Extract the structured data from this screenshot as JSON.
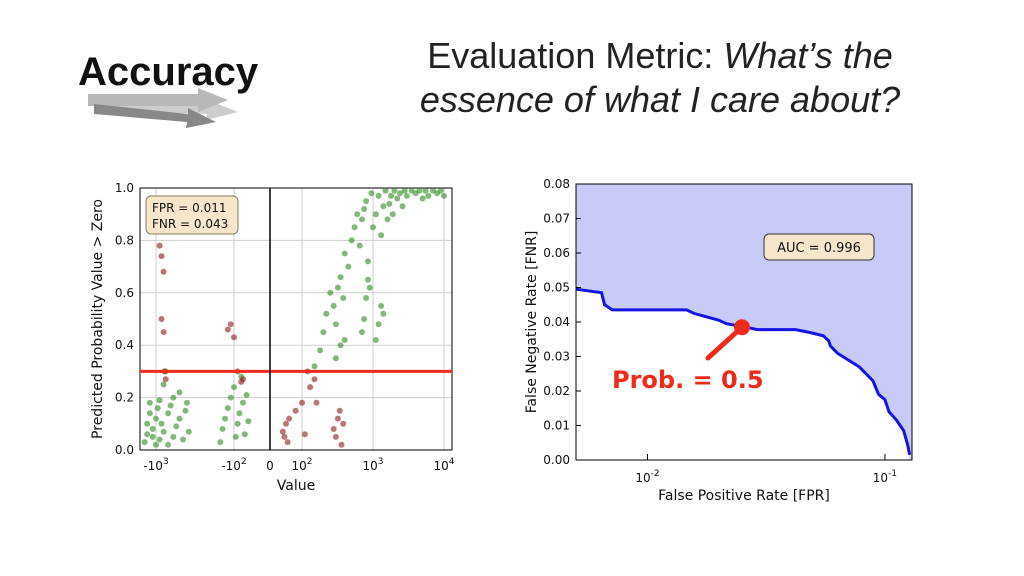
{
  "slide": {
    "title": "Accuracy",
    "heading_prefix": "Evaluation Metric: ",
    "heading_italic_1": "What’s the",
    "heading_italic_2": "essence of what I care about?"
  },
  "colors": {
    "green_points": "#2e8b22",
    "red_points": "#8b1a1a",
    "threshold_line": "#ee2a1b",
    "fill_area": "#c8caf7",
    "curve": "#1414e6",
    "callout": "#ee2a1b",
    "box_fill": "#f6e6cc"
  },
  "chart_data": [
    {
      "type": "scatter",
      "xlabel": "Value",
      "ylabel": "Predicted Probability Value > Zero",
      "x_scale": "symlog",
      "x_ticks": [
        {
          "value": -1000,
          "label": "-10"
        },
        {
          "value": -100,
          "label": "-10"
        },
        {
          "value": 0,
          "label": "0"
        },
        {
          "value": 100,
          "label": "10"
        },
        {
          "value": 1000,
          "label": "10"
        },
        {
          "value": 10000,
          "label": "10"
        }
      ],
      "x_tick_exponents": [
        "3",
        "2",
        "",
        "2",
        "3",
        "4"
      ],
      "ylim": [
        0.0,
        1.0
      ],
      "y_ticks": [
        "0.0",
        "0.2",
        "0.4",
        "0.6",
        "0.8",
        "1.0"
      ],
      "grid": true,
      "threshold": 0.3,
      "vertical_line_at": 0,
      "annotation": {
        "line1": "FPR = 0.011",
        "line2": "FNR = 0.043"
      },
      "series": [
        {
          "color": "green",
          "points": [
            [
              -1400,
              0.03
            ],
            [
              -1300,
              0.06
            ],
            [
              -1300,
              0.1
            ],
            [
              -1200,
              0.14
            ],
            [
              -1200,
              0.18
            ],
            [
              -1100,
              0.05
            ],
            [
              -1100,
              0.08
            ],
            [
              -1000,
              0.02
            ],
            [
              -1000,
              0.12
            ],
            [
              -950,
              0.16
            ],
            [
              -900,
              0.19
            ],
            [
              -900,
              0.04
            ],
            [
              -850,
              0.1
            ],
            [
              -800,
              0.25
            ],
            [
              -800,
              0.07
            ],
            [
              -750,
              0.3
            ],
            [
              -700,
              0.02
            ],
            [
              -700,
              0.14
            ],
            [
              -650,
              0.17
            ],
            [
              -600,
              0.2
            ],
            [
              -600,
              0.05
            ],
            [
              -550,
              0.09
            ],
            [
              -500,
              0.12
            ],
            [
              -500,
              0.22
            ],
            [
              -450,
              0.04
            ],
            [
              -420,
              0.15
            ],
            [
              -400,
              0.18
            ],
            [
              -380,
              0.07
            ],
            [
              -150,
              0.03
            ],
            [
              -140,
              0.08
            ],
            [
              -130,
              0.12
            ],
            [
              -120,
              0.16
            ],
            [
              -110,
              0.2
            ],
            [
              -100,
              0.24
            ],
            [
              -95,
              0.05
            ],
            [
              -90,
              0.1
            ],
            [
              -85,
              0.14
            ],
            [
              -80,
              0.28
            ],
            [
              -75,
              0.18
            ],
            [
              -70,
              0.06
            ],
            [
              -65,
              0.21
            ],
            [
              -60,
              0.11
            ],
            [
              150,
              0.32
            ],
            [
              180,
              0.38
            ],
            [
              200,
              0.45
            ],
            [
              220,
              0.52
            ],
            [
              250,
              0.6
            ],
            [
              280,
              0.55
            ],
            [
              300,
              0.48
            ],
            [
              320,
              0.62
            ],
            [
              350,
              0.66
            ],
            [
              380,
              0.58
            ],
            [
              400,
              0.75
            ],
            [
              450,
              0.7
            ],
            [
              500,
              0.8
            ],
            [
              550,
              0.85
            ],
            [
              600,
              0.9
            ],
            [
              650,
              0.78
            ],
            [
              700,
              0.88
            ],
            [
              750,
              0.92
            ],
            [
              800,
              0.95
            ],
            [
              850,
              0.72
            ],
            [
              900,
              0.62
            ],
            [
              950,
              0.98
            ],
            [
              1000,
              0.85
            ],
            [
              1100,
              0.9
            ],
            [
              1200,
              0.97
            ],
            [
              1300,
              0.82
            ],
            [
              1400,
              0.93
            ],
            [
              1500,
              0.99
            ],
            [
              1600,
              0.88
            ],
            [
              1700,
              0.94
            ],
            [
              1800,
              0.97
            ],
            [
              1900,
              0.9
            ],
            [
              2000,
              0.99
            ],
            [
              2200,
              0.96
            ],
            [
              2400,
              0.98
            ],
            [
              2600,
              0.93
            ],
            [
              2800,
              0.99
            ],
            [
              3000,
              0.97
            ],
            [
              3500,
              0.99
            ],
            [
              4000,
              0.98
            ],
            [
              4500,
              0.99
            ],
            [
              5000,
              0.96
            ],
            [
              5500,
              0.99
            ],
            [
              6000,
              0.97
            ],
            [
              7000,
              0.99
            ],
            [
              8000,
              0.98
            ],
            [
              9000,
              0.99
            ],
            [
              10000,
              0.97
            ],
            [
              1100,
              0.42
            ],
            [
              1200,
              0.48
            ],
            [
              1300,
              0.55
            ],
            [
              1400,
              0.52
            ],
            [
              700,
              0.45
            ],
            [
              750,
              0.5
            ],
            [
              800,
              0.58
            ],
            [
              850,
              0.65
            ],
            [
              300,
              0.35
            ],
            [
              350,
              0.4
            ],
            [
              400,
              0.42
            ]
          ]
        },
        {
          "color": "red",
          "points": [
            [
              -900,
              0.78
            ],
            [
              -850,
              0.74
            ],
            [
              -800,
              0.68
            ],
            [
              -850,
              0.5
            ],
            [
              -800,
              0.45
            ],
            [
              -780,
              0.3
            ],
            [
              -750,
              0.27
            ],
            [
              -120,
              0.46
            ],
            [
              -110,
              0.48
            ],
            [
              -100,
              0.43
            ],
            [
              -90,
              0.3
            ],
            [
              -80,
              0.26
            ],
            [
              -75,
              0.27
            ],
            [
              40,
              0.07
            ],
            [
              45,
              0.05
            ],
            [
              50,
              0.1
            ],
            [
              55,
              0.03
            ],
            [
              60,
              0.12
            ],
            [
              80,
              0.15
            ],
            [
              100,
              0.18
            ],
            [
              110,
              0.06
            ],
            [
              120,
              0.3
            ],
            [
              130,
              0.24
            ],
            [
              150,
              0.27
            ],
            [
              160,
              0.18
            ],
            [
              280,
              0.08
            ],
            [
              300,
              0.05
            ],
            [
              320,
              0.12
            ],
            [
              340,
              0.15
            ],
            [
              360,
              0.02
            ],
            [
              380,
              0.1
            ]
          ]
        }
      ]
    },
    {
      "type": "area",
      "xlabel": "False Positive Rate [FPR]",
      "ylabel": "False Negative Rate [FNR]",
      "x_scale": "log",
      "xlim": [
        0.005,
        0.13
      ],
      "x_ticks": [
        {
          "value": 0.01,
          "label": "10"
        },
        {
          "value": 0.1,
          "label": "10"
        }
      ],
      "x_tick_exponents": [
        "-2",
        "-1"
      ],
      "ylim": [
        0.0,
        0.08
      ],
      "y_ticks": [
        "0.00",
        "0.01",
        "0.02",
        "0.03",
        "0.04",
        "0.05",
        "0.06",
        "0.07",
        "0.08"
      ],
      "annotation": "AUC = 0.996",
      "callout": {
        "label": "Prob. = 0.5",
        "fpr": 0.025,
        "fnr": 0.0385
      },
      "x": [
        0.005,
        0.0064,
        0.0066,
        0.0071,
        0.0146,
        0.0157,
        0.02,
        0.0215,
        0.026,
        0.029,
        0.042,
        0.048,
        0.055,
        0.058,
        0.059,
        0.063,
        0.078,
        0.089,
        0.094,
        0.1,
        0.104,
        0.112,
        0.12,
        0.125,
        0.127
      ],
      "y": [
        0.0495,
        0.0485,
        0.045,
        0.0435,
        0.0435,
        0.0425,
        0.0405,
        0.0395,
        0.0385,
        0.0378,
        0.0378,
        0.037,
        0.036,
        0.0345,
        0.033,
        0.031,
        0.027,
        0.023,
        0.019,
        0.0175,
        0.014,
        0.0115,
        0.0085,
        0.004,
        0.0015
      ]
    }
  ]
}
